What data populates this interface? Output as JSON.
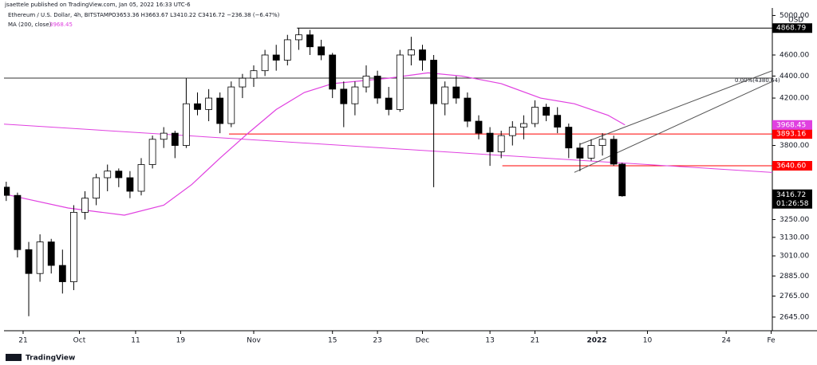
{
  "chart_data": {
    "type": "candlestick",
    "header": "jsaettele published on TradingView.com, Jan 05, 2022 16:33 UTC-6",
    "symbol": "Ethereum / U.S. Dollar, 4h, BITSTAMP",
    "legend_ohlc": "O3653.36 H3663.67 L3410.22 C3416.72 −236.38 (−6.47%)",
    "ma_label": "MA (200, close)",
    "ma_value": "3968.45",
    "currency": "USD",
    "footer": "TradingView",
    "countdown": "01:26:58",
    "fib_label": "0.00%(4380.64)",
    "log_scale": true,
    "grid": false,
    "xlim": [
      -3.4,
      133.2
    ],
    "ylim": [
      2570,
      5080
    ],
    "xticks": [
      {
        "value": 0,
        "label": "21"
      },
      {
        "value": 10,
        "label": "Oct"
      },
      {
        "value": 20,
        "label": "11"
      },
      {
        "value": 28,
        "label": "19"
      },
      {
        "value": 41,
        "label": "Nov"
      },
      {
        "value": 55,
        "label": "15"
      },
      {
        "value": 63,
        "label": "23"
      },
      {
        "value": 71,
        "label": "Dec"
      },
      {
        "value": 83,
        "label": "13"
      },
      {
        "value": 91,
        "label": "21"
      },
      {
        "value": 102,
        "label": "2022"
      },
      {
        "value": 111,
        "label": "10"
      },
      {
        "value": 125,
        "label": "24"
      },
      {
        "value": 133,
        "label": "Fe"
      }
    ],
    "yticks": [
      {
        "value": 2645,
        "label": "2645.00"
      },
      {
        "value": 2765,
        "label": "2765.00"
      },
      {
        "value": 2885,
        "label": "2885.00"
      },
      {
        "value": 3010,
        "label": "3010.00"
      },
      {
        "value": 3130,
        "label": "3130.00"
      },
      {
        "value": 3250,
        "label": "3250.00"
      },
      {
        "value": 3800,
        "label": "3800.00"
      },
      {
        "value": 4200,
        "label": "4200.00"
      },
      {
        "value": 4400,
        "label": "4400.00"
      },
      {
        "value": 4600,
        "label": "4600.00"
      },
      {
        "value": 5000,
        "label": "5000.00"
      }
    ],
    "candles": {
      "up_color": "#ffffff",
      "down_color": "#000000",
      "border_color": "#000000",
      "x": [
        -3,
        -1,
        1,
        3,
        5,
        7,
        9,
        11,
        13,
        15,
        17,
        19,
        21,
        23,
        25,
        27,
        29,
        31,
        33,
        35,
        37,
        39,
        41,
        43,
        45,
        47,
        49,
        51,
        53,
        55,
        57,
        59,
        61,
        63,
        65,
        67,
        69,
        71,
        73,
        75,
        77,
        79,
        81,
        83,
        85,
        87,
        89,
        91,
        93,
        95,
        97,
        99,
        101,
        103,
        105,
        106.5
      ],
      "open": [
        3480,
        3420,
        3050,
        2900,
        3100,
        2950,
        2850,
        3300,
        3400,
        3550,
        3600,
        3550,
        3450,
        3650,
        3850,
        3900,
        3800,
        4150,
        4100,
        4200,
        3980,
        4300,
        4380,
        4450,
        4600,
        4550,
        4750,
        4800,
        4680,
        4600,
        4280,
        4150,
        4300,
        4400,
        4200,
        4100,
        4600,
        4650,
        4550,
        4150,
        4300,
        4200,
        4000,
        3900,
        3750,
        3880,
        3950,
        3980,
        4120,
        4050,
        3950,
        3780,
        3700,
        3800,
        3850,
        3653.36
      ],
      "high": [
        3520,
        3440,
        3100,
        3150,
        3120,
        3050,
        3350,
        3450,
        3580,
        3650,
        3620,
        3600,
        3700,
        3880,
        3950,
        3920,
        4380,
        4250,
        4280,
        4250,
        4350,
        4420,
        4500,
        4650,
        4700,
        4800,
        4868.79,
        4850,
        4750,
        4620,
        4350,
        4350,
        4500,
        4450,
        4300,
        4650,
        4780,
        4700,
        4600,
        4350,
        4400,
        4250,
        4050,
        3950,
        3920,
        4000,
        4050,
        4180,
        4150,
        4120,
        3980,
        3820,
        3850,
        3900,
        3880,
        3663.67
      ],
      "low": [
        3380,
        3000,
        2650,
        2850,
        2900,
        2780,
        2800,
        3250,
        3350,
        3450,
        3480,
        3400,
        3420,
        3620,
        3780,
        3700,
        3780,
        4050,
        4000,
        3900,
        3950,
        4200,
        4300,
        4400,
        4450,
        4500,
        4650,
        4600,
        4550,
        4200,
        3950,
        4050,
        4250,
        4150,
        4050,
        4080,
        4500,
        4450,
        3480,
        4050,
        4150,
        3950,
        3850,
        3640,
        3700,
        3800,
        3850,
        3950,
        4000,
        3900,
        3700,
        3600,
        3680,
        3720,
        3640,
        3410.22
      ],
      "close": [
        3420,
        3050,
        2900,
        3100,
        2950,
        2850,
        3300,
        3400,
        3550,
        3600,
        3550,
        3450,
        3650,
        3850,
        3900,
        3800,
        4150,
        4100,
        4200,
        3980,
        4300,
        4380,
        4450,
        4600,
        4550,
        4750,
        4800,
        4680,
        4600,
        4280,
        4150,
        4300,
        4400,
        4200,
        4100,
        4600,
        4650,
        4550,
        4150,
        4300,
        4200,
        4000,
        3900,
        3750,
        3880,
        3950,
        3980,
        4120,
        4050,
        3950,
        3780,
        3700,
        3800,
        3850,
        3653.36,
        3416.72
      ]
    },
    "ma": {
      "color": "#e040e0",
      "x": [
        -3.4,
        8,
        18,
        25,
        30,
        35,
        40,
        45,
        50,
        55,
        65,
        72,
        78,
        85,
        92,
        98,
        104,
        107
      ],
      "values": [
        3430,
        3330,
        3280,
        3350,
        3500,
        3700,
        3900,
        4100,
        4250,
        4330,
        4380,
        4430,
        4400,
        4330,
        4200,
        4150,
        4050,
        3968.45
      ]
    },
    "lines": [
      {
        "color": "#e040e0",
        "x": [
          -3.4,
          133.2
        ],
        "y": [
          3975,
          3590
        ]
      },
      {
        "color": "#555555",
        "x": [
          99,
          133.2
        ],
        "y": [
          3810,
          4450
        ]
      },
      {
        "color": "#555555",
        "x": [
          98,
          133.2
        ],
        "y": [
          3590,
          4350
        ]
      }
    ],
    "levels": [
      {
        "value": 4868.79,
        "label": "4868.79",
        "x_start": 48.7,
        "color": "#000000",
        "text_color": "#ffffff"
      },
      {
        "value": 4380.64,
        "label": "4380.64",
        "x_start": -3.4,
        "color": "#333333",
        "text_color": null
      },
      {
        "value": 3893.16,
        "label": "3893.16",
        "x_start": 36.6,
        "color": "#ff0000",
        "text_color": "#ffffff"
      },
      {
        "value": 3640.6,
        "label": "3640.60",
        "x_start": 85.2,
        "color": "#ff0000",
        "text_color": "#ffffff"
      }
    ],
    "last_price": {
      "value": 3416.72,
      "label": "3416.72"
    },
    "ma_price": {
      "value": 3968.45,
      "label": "3968.45"
    }
  }
}
